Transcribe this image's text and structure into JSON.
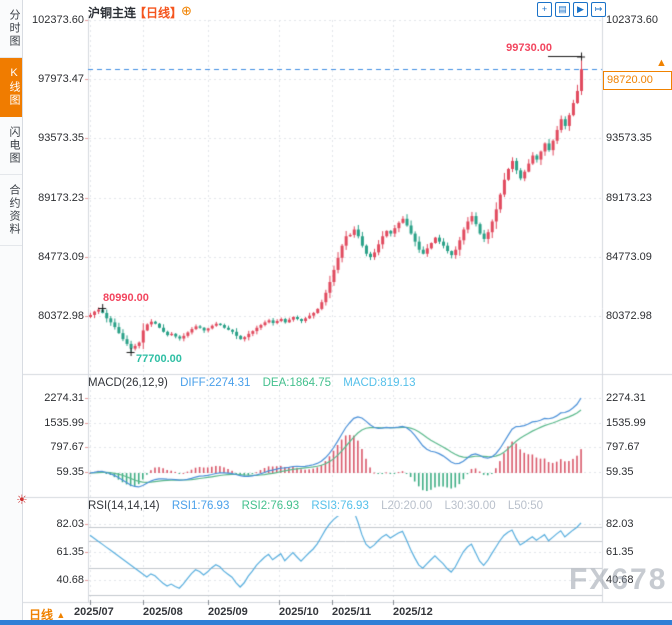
{
  "sidebar": {
    "tabs": [
      {
        "label": "分时图",
        "active": false
      },
      {
        "label": "K线图",
        "active": true
      },
      {
        "label": "闪电图",
        "active": false
      },
      {
        "label": "合约资料",
        "active": false
      }
    ]
  },
  "header": {
    "title": "沪铜主连",
    "period": "【日线】"
  },
  "icons": {
    "plus": "⊕",
    "crosshair": "+",
    "fit": "▤",
    "play": "▶",
    "jump": "↦",
    "up_arrow": "▲",
    "settings": "☀"
  },
  "colors": {
    "candle_up": "#e14b5f",
    "candle_down": "#2aa188",
    "accent_orange": "#f07c00",
    "diff_line": "#4a90d8",
    "dea_line": "#5bb98c",
    "rsi_line": "#58aede",
    "dashed_price_line": "#3e8ce2",
    "annotation_red": "#f2465f",
    "annotation_green": "#2fbfa4"
  },
  "chart_data": {
    "type": "candlestick",
    "title": "沪铜主连 日线",
    "x_labels": [
      "2025/07",
      "2025/08",
      "2025/09",
      "2025/10",
      "2025/11",
      "2025/12"
    ],
    "y_ticks_main": [
      102373.6,
      97973.47,
      93573.35,
      89173.23,
      84773.09,
      80372.98
    ],
    "first_open": 80300,
    "closes": [
      80450,
      80700,
      80850,
      80600,
      80200,
      79900,
      79550,
      79100,
      78650,
      78300,
      77950,
      78150,
      78400,
      79300,
      79750,
      79950,
      79800,
      79500,
      79200,
      78950,
      79050,
      78850,
      78700,
      78900,
      79150,
      79400,
      79600,
      79500,
      79300,
      79450,
      79650,
      79800,
      79700,
      79500,
      79350,
      79200,
      78900,
      78650,
      78800,
      79050,
      79250,
      79500,
      79700,
      79900,
      80050,
      79850,
      80000,
      80150,
      79900,
      80100,
      80300,
      80150,
      80000,
      80200,
      80400,
      80600,
      80900,
      81400,
      82100,
      82900,
      83800,
      84700,
      85600,
      86300,
      86400,
      86800,
      86300,
      85600,
      85000,
      84750,
      85100,
      85700,
      86300,
      86700,
      86500,
      86900,
      87300,
      87600,
      87100,
      86500,
      85900,
      85300,
      85000,
      85400,
      85800,
      86200,
      85900,
      85600,
      85200,
      84900,
      85300,
      86000,
      86800,
      87400,
      87800,
      87200,
      86500,
      86100,
      86600,
      87400,
      88300,
      89400,
      90500,
      91300,
      91900,
      91200,
      90600,
      91100,
      91700,
      92300,
      92000,
      92600,
      93200,
      92700,
      93400,
      94200,
      95000,
      94500,
      95300,
      96200,
      97100,
      98720
    ],
    "annotations": {
      "session_high": 99730.0,
      "session_low": 77700.0,
      "early_high": 80990.0,
      "last_price": 98720.0,
      "early_high_bar": 3,
      "session_low_bar": 10
    },
    "indicators": {
      "macd": {
        "params": [
          26,
          12,
          9
        ],
        "diff": 2274.31,
        "dea": 1864.75,
        "macd": 819.13,
        "ticks": [
          2274.31,
          1535.99,
          797.67,
          59.35
        ]
      },
      "rsi": {
        "params": [
          14,
          14,
          14
        ],
        "rsi1": 76.93,
        "rsi2": 76.93,
        "rsi3": 76.93,
        "l20": 20.0,
        "l30": 30.0,
        "l50": 50.0,
        "ticks": [
          82.03,
          61.35,
          40.68
        ],
        "levels": [
          80,
          70,
          50,
          30
        ]
      }
    }
  },
  "macd_panel": {
    "label": "MACD(26,12,9)",
    "diff_label": "DIFF:2274.31",
    "dea_label": "DEA:1864.75",
    "macd_label": "MACD:819.13"
  },
  "rsi_panel": {
    "label": "RSI(14,14,14)",
    "rsi1_label": "RSI1:76.93",
    "rsi2_label": "RSI2:76.93",
    "rsi3_label": "RSI3:76.93",
    "l20_label": "L20:20.00",
    "l30_label": "L30:30.00",
    "l50_label": "L50:50"
  },
  "annotations": {
    "high_text": "99730.00",
    "low_text": "77700.00",
    "early_high_text": "80990.00",
    "last_price_text": "98720.00"
  },
  "footer": {
    "period": "日线"
  },
  "watermark": "FX678"
}
